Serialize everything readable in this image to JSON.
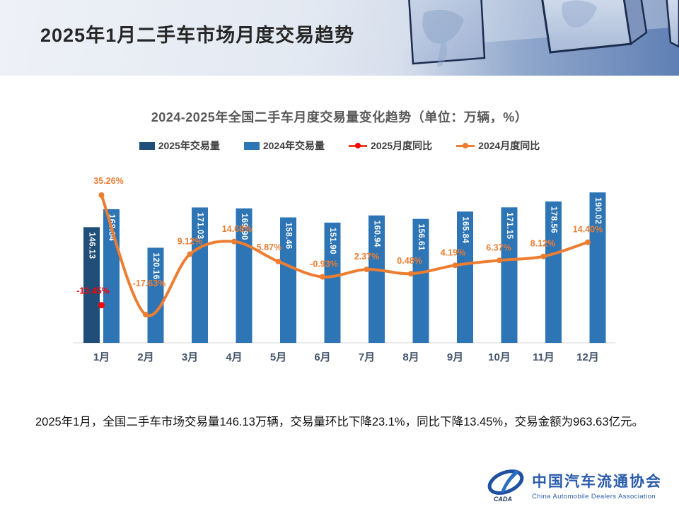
{
  "header": {
    "title": "2025年1月二手车市场月度交易趋势"
  },
  "chart": {
    "title": "2024-2025年全国二手车月度交易量变化趋势（单位：万辆，%）",
    "legend": [
      {
        "label": "2025年交易量",
        "type": "bar",
        "color": "#1f4e79"
      },
      {
        "label": "2024年交易量",
        "type": "bar",
        "color": "#2e75b6"
      },
      {
        "label": "2025月度同比",
        "type": "line",
        "color": "#e8431f",
        "marker_color": "#ff0000"
      },
      {
        "label": "2024月度同比",
        "type": "line",
        "color": "#ed7d31",
        "marker_color": "#ed7d31"
      }
    ]
  },
  "chart_data": {
    "type": "bar+line",
    "categories": [
      "1月",
      "2月",
      "3月",
      "4月",
      "5月",
      "6月",
      "7月",
      "8月",
      "9月",
      "10月",
      "11月",
      "12月"
    ],
    "series": [
      {
        "name": "2025年交易量",
        "type": "bar",
        "unit": "万辆",
        "color": "#1f4e79",
        "values": [
          146.13,
          null,
          null,
          null,
          null,
          null,
          null,
          null,
          null,
          null,
          null,
          null
        ]
      },
      {
        "name": "2024年交易量",
        "type": "bar",
        "unit": "万辆",
        "color": "#2e75b6",
        "values": [
          168.84,
          120.16,
          171.03,
          169.9,
          158.46,
          151.9,
          160.94,
          156.61,
          165.84,
          171.15,
          178.56,
          190.02
        ]
      },
      {
        "name": "2025月度同比",
        "type": "line",
        "unit": "%",
        "color": "#e8431f",
        "marker_color": "#ff0000",
        "label_color": "#ff0000",
        "values": [
          -13.45,
          null,
          null,
          null,
          null,
          null,
          null,
          null,
          null,
          null,
          null,
          null
        ]
      },
      {
        "name": "2024月度同比",
        "type": "line",
        "unit": "%",
        "color": "#ed7d31",
        "marker_color": "#ed7d31",
        "label_color": "#ed7d31",
        "values": [
          35.26,
          -17.63,
          9.12,
          14.68,
          5.87,
          -0.93,
          2.37,
          0.48,
          4.19,
          6.37,
          8.12,
          14.4
        ]
      }
    ],
    "value_label_decimals": 2,
    "percent_suffix": "%",
    "axes": {
      "left": {
        "unit": "万辆",
        "min": 0
      },
      "right": {
        "unit": "%"
      }
    },
    "grid": false,
    "legend_position": "top"
  },
  "summary": "2025年1月，全国二手车市场交易量146.13万辆，交易量环比下降23.1%，同比下降13.45%，交易金额为963.63亿元。",
  "logo": {
    "cn": "中国汽车流通协会",
    "en": "China Automobile Dealers Association",
    "mark": "CADA"
  }
}
